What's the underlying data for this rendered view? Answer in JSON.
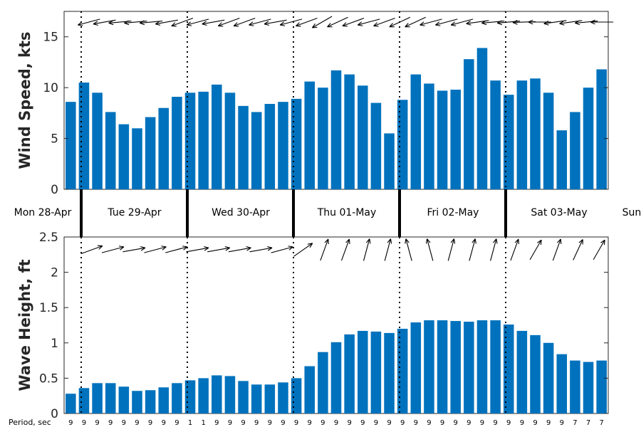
{
  "chart_data": [
    {
      "type": "bar",
      "ylabel": "Wind Speed, kts",
      "ylim": [
        0,
        17.5
      ],
      "yticks": [
        0,
        5,
        10,
        15
      ],
      "values": [
        8.6,
        10.5,
        9.5,
        7.6,
        6.4,
        6.0,
        7.1,
        8.0,
        9.1,
        9.5,
        9.6,
        10.3,
        9.5,
        8.2,
        7.6,
        8.4,
        8.6,
        8.9,
        10.6,
        10.0,
        11.7,
        11.3,
        10.2,
        8.5,
        5.5,
        8.8,
        11.3,
        10.4,
        9.7,
        9.8,
        12.8,
        13.9,
        10.7,
        9.3,
        10.7,
        10.9,
        9.5,
        5.8,
        7.6,
        10.0,
        11.8
      ],
      "direction_arrows_deg": [
        255,
        260,
        265,
        265,
        265,
        260,
        250,
        255,
        260,
        250,
        250,
        255,
        260,
        255,
        250,
        240,
        245,
        250,
        255,
        250,
        245,
        245,
        255,
        255,
        255,
        262,
        265,
        265,
        268,
        270,
        262,
        262,
        265,
        270
      ],
      "grid": false,
      "color": "#0072BD"
    },
    {
      "type": "bar",
      "ylabel": "Wave Height, ft",
      "ylim": [
        0,
        2.5
      ],
      "yticks": [
        0,
        0.5,
        1,
        1.5,
        2,
        2.5
      ],
      "ytick_labels": [
        "0",
        "0.5",
        "1",
        "1.5",
        "2",
        "2.5"
      ],
      "values": [
        0.28,
        0.36,
        0.43,
        0.43,
        0.38,
        0.32,
        0.33,
        0.37,
        0.43,
        0.47,
        0.5,
        0.54,
        0.53,
        0.46,
        0.41,
        0.41,
        0.44,
        0.5,
        0.67,
        0.87,
        1.01,
        1.12,
        1.17,
        1.16,
        1.14,
        1.2,
        1.29,
        1.32,
        1.32,
        1.31,
        1.3,
        1.32,
        1.32,
        1.26,
        1.17,
        1.11,
        1.0,
        0.84,
        0.75,
        0.73,
        0.75
      ],
      "direction_arrows_deg": [
        70,
        75,
        80,
        75,
        75,
        80,
        80,
        80,
        80,
        75,
        55,
        20,
        20,
        15,
        15,
        345,
        345,
        15,
        15,
        15,
        20,
        30,
        20,
        25,
        30
      ],
      "grid": false,
      "color": "#0072BD"
    }
  ],
  "days": [
    "Mon 28-Apr",
    "Tue 29-Apr",
    "Wed 30-Apr",
    "Thu 01-May",
    "Fri 02-May",
    "Sat 03-May",
    "Sun"
  ],
  "period": {
    "label": "Period, sec",
    "values": [
      "9",
      "9",
      "9",
      "9",
      "9",
      "9",
      "9",
      "9",
      "9",
      "1",
      "1",
      "9",
      "9",
      "9",
      "9",
      "9",
      "9",
      "9",
      "9",
      "9",
      "9",
      "9",
      "9",
      "9",
      "9",
      "9",
      "9",
      "9",
      "9",
      "9",
      "9",
      "9",
      "9",
      "9",
      "9",
      "9",
      "9",
      "9",
      "7",
      "7",
      "7"
    ]
  }
}
